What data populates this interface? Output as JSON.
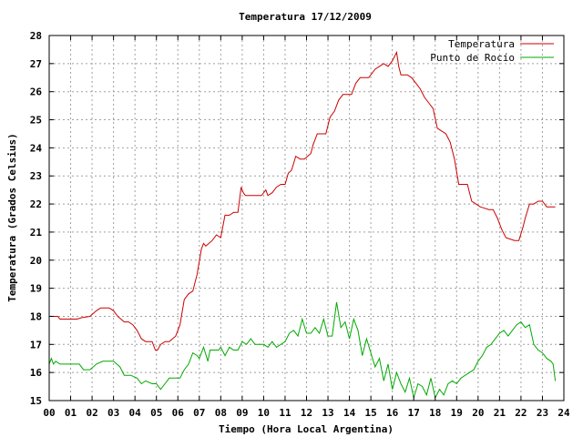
{
  "chart_data": {
    "type": "line",
    "title": "Temperatura 17/12/2009",
    "xlabel": "Tiempo (Hora Local Argentina)",
    "ylabel": "Temperatura (Grados Celsius)",
    "xlim": [
      0,
      24
    ],
    "ylim": [
      15,
      28
    ],
    "x_ticks": [
      "00",
      "01",
      "02",
      "03",
      "04",
      "05",
      "06",
      "07",
      "08",
      "09",
      "10",
      "11",
      "12",
      "13",
      "14",
      "15",
      "16",
      "17",
      "18",
      "19",
      "20",
      "21",
      "22",
      "23",
      "24"
    ],
    "y_ticks": [
      15,
      16,
      17,
      18,
      19,
      20,
      21,
      22,
      23,
      24,
      25,
      26,
      27,
      28
    ],
    "grid": true,
    "legend_position": "top-right",
    "series": [
      {
        "name": "Temperatura",
        "color": "#cc0000",
        "x": [
          0,
          0.4,
          0.5,
          1.3,
          1.5,
          1.9,
          2.2,
          2.4,
          2.8,
          3.0,
          3.2,
          3.5,
          3.7,
          3.9,
          4.1,
          4.3,
          4.5,
          4.8,
          4.95,
          5.05,
          5.2,
          5.4,
          5.6,
          5.9,
          6.1,
          6.3,
          6.5,
          6.7,
          6.9,
          7.1,
          7.2,
          7.3,
          7.6,
          7.8,
          8.0,
          8.2,
          8.4,
          8.6,
          8.8,
          8.95,
          9.05,
          9.15,
          9.3,
          9.6,
          9.9,
          10.1,
          10.2,
          10.4,
          10.6,
          10.8,
          11.0,
          11.15,
          11.3,
          11.5,
          11.7,
          11.9,
          12.05,
          12.2,
          12.3,
          12.5,
          12.7,
          12.9,
          13.1,
          13.3,
          13.5,
          13.7,
          13.9,
          14.1,
          14.3,
          14.5,
          14.7,
          14.9,
          15.2,
          15.4,
          15.6,
          15.8,
          16.0,
          16.2,
          16.3,
          16.4,
          16.5,
          16.7,
          16.9,
          17.1,
          17.3,
          17.5,
          17.7,
          17.9,
          18.1,
          18.3,
          18.5,
          18.7,
          18.9,
          19.1,
          19.3,
          19.5,
          19.7,
          19.9,
          20.1,
          20.3,
          20.5,
          20.7,
          20.9,
          21.1,
          21.3,
          21.5,
          21.7,
          21.9,
          22.1,
          22.2,
          22.4,
          22.6,
          22.8,
          23.0,
          23.2,
          23.4,
          23.6
        ],
        "values": [
          18.0,
          18.0,
          17.9,
          17.9,
          17.95,
          18.0,
          18.2,
          18.3,
          18.3,
          18.2,
          18.0,
          17.8,
          17.8,
          17.7,
          17.5,
          17.2,
          17.1,
          17.1,
          16.8,
          16.8,
          17.0,
          17.1,
          17.1,
          17.3,
          17.7,
          18.6,
          18.8,
          18.9,
          19.5,
          20.4,
          20.6,
          20.5,
          20.7,
          20.9,
          20.8,
          21.6,
          21.6,
          21.7,
          21.7,
          22.6,
          22.4,
          22.3,
          22.3,
          22.3,
          22.3,
          22.5,
          22.3,
          22.4,
          22.6,
          22.7,
          22.7,
          23.1,
          23.2,
          23.7,
          23.6,
          23.6,
          23.7,
          23.8,
          24.1,
          24.5,
          24.5,
          24.5,
          25.1,
          25.3,
          25.7,
          25.9,
          25.9,
          25.9,
          26.3,
          26.5,
          26.5,
          26.5,
          26.8,
          26.9,
          27.0,
          26.9,
          27.1,
          27.4,
          26.9,
          26.6,
          26.6,
          26.6,
          26.5,
          26.3,
          26.1,
          25.8,
          25.6,
          25.4,
          24.7,
          24.6,
          24.5,
          24.2,
          23.6,
          22.7,
          22.7,
          22.7,
          22.1,
          22.0,
          21.9,
          21.85,
          21.8,
          21.8,
          21.5,
          21.1,
          20.8,
          20.75,
          20.7,
          20.7,
          21.2,
          21.5,
          22.0,
          22.0,
          22.1,
          22.1,
          21.9,
          21.9,
          21.9
        ],
        "legend": "Temperatura"
      },
      {
        "name": "Punto de Rocío",
        "color": "#00aa00",
        "x": [
          0,
          0.1,
          0.2,
          0.3,
          0.5,
          1.0,
          1.4,
          1.6,
          1.9,
          2.2,
          2.5,
          3.0,
          3.3,
          3.5,
          3.8,
          4.1,
          4.3,
          4.5,
          4.8,
          5.0,
          5.2,
          5.4,
          5.6,
          5.9,
          6.1,
          6.3,
          6.5,
          6.7,
          6.9,
          7.0,
          7.2,
          7.4,
          7.5,
          7.7,
          7.9,
          8.0,
          8.2,
          8.4,
          8.6,
          8.8,
          9.0,
          9.2,
          9.4,
          9.6,
          9.8,
          10.0,
          10.2,
          10.4,
          10.6,
          10.8,
          11.0,
          11.2,
          11.4,
          11.6,
          11.8,
          12.0,
          12.2,
          12.4,
          12.6,
          12.8,
          13.0,
          13.2,
          13.4,
          13.6,
          13.8,
          14.0,
          14.2,
          14.4,
          14.6,
          14.8,
          15.0,
          15.2,
          15.4,
          15.6,
          15.8,
          16.0,
          16.2,
          16.4,
          16.6,
          16.8,
          17.0,
          17.2,
          17.4,
          17.6,
          17.8,
          18.0,
          18.2,
          18.4,
          18.6,
          18.8,
          19.0,
          19.2,
          19.4,
          19.6,
          19.8,
          20.0,
          20.2,
          20.4,
          20.6,
          20.8,
          21.0,
          21.2,
          21.4,
          21.6,
          21.8,
          22.0,
          22.2,
          22.4,
          22.6,
          22.8,
          23.0,
          23.2,
          23.4,
          23.5,
          23.6
        ],
        "values": [
          16.3,
          16.5,
          16.3,
          16.4,
          16.3,
          16.3,
          16.3,
          16.1,
          16.1,
          16.3,
          16.4,
          16.4,
          16.2,
          15.9,
          15.9,
          15.8,
          15.6,
          15.7,
          15.6,
          15.6,
          15.4,
          15.6,
          15.8,
          15.8,
          15.8,
          16.1,
          16.3,
          16.7,
          16.6,
          16.5,
          16.9,
          16.4,
          16.8,
          16.8,
          16.8,
          16.9,
          16.6,
          16.9,
          16.8,
          16.8,
          17.1,
          17.0,
          17.2,
          17.0,
          17.0,
          17.0,
          16.9,
          17.1,
          16.9,
          17.0,
          17.1,
          17.4,
          17.5,
          17.3,
          17.9,
          17.4,
          17.4,
          17.6,
          17.4,
          17.9,
          17.3,
          17.3,
          18.5,
          17.6,
          17.8,
          17.2,
          17.9,
          17.5,
          16.6,
          17.2,
          16.7,
          16.2,
          16.5,
          15.7,
          16.3,
          15.4,
          16.0,
          15.6,
          15.3,
          15.8,
          15.1,
          15.6,
          15.5,
          15.2,
          15.8,
          15.1,
          15.4,
          15.2,
          15.6,
          15.7,
          15.6,
          15.8,
          15.9,
          16.0,
          16.1,
          16.4,
          16.6,
          16.9,
          17.0,
          17.2,
          17.4,
          17.5,
          17.3,
          17.5,
          17.7,
          17.8,
          17.6,
          17.7,
          17.0,
          16.8,
          16.7,
          16.5,
          16.4,
          16.3,
          15.7
        ],
        "legend": "Punto de Rocío"
      }
    ]
  }
}
